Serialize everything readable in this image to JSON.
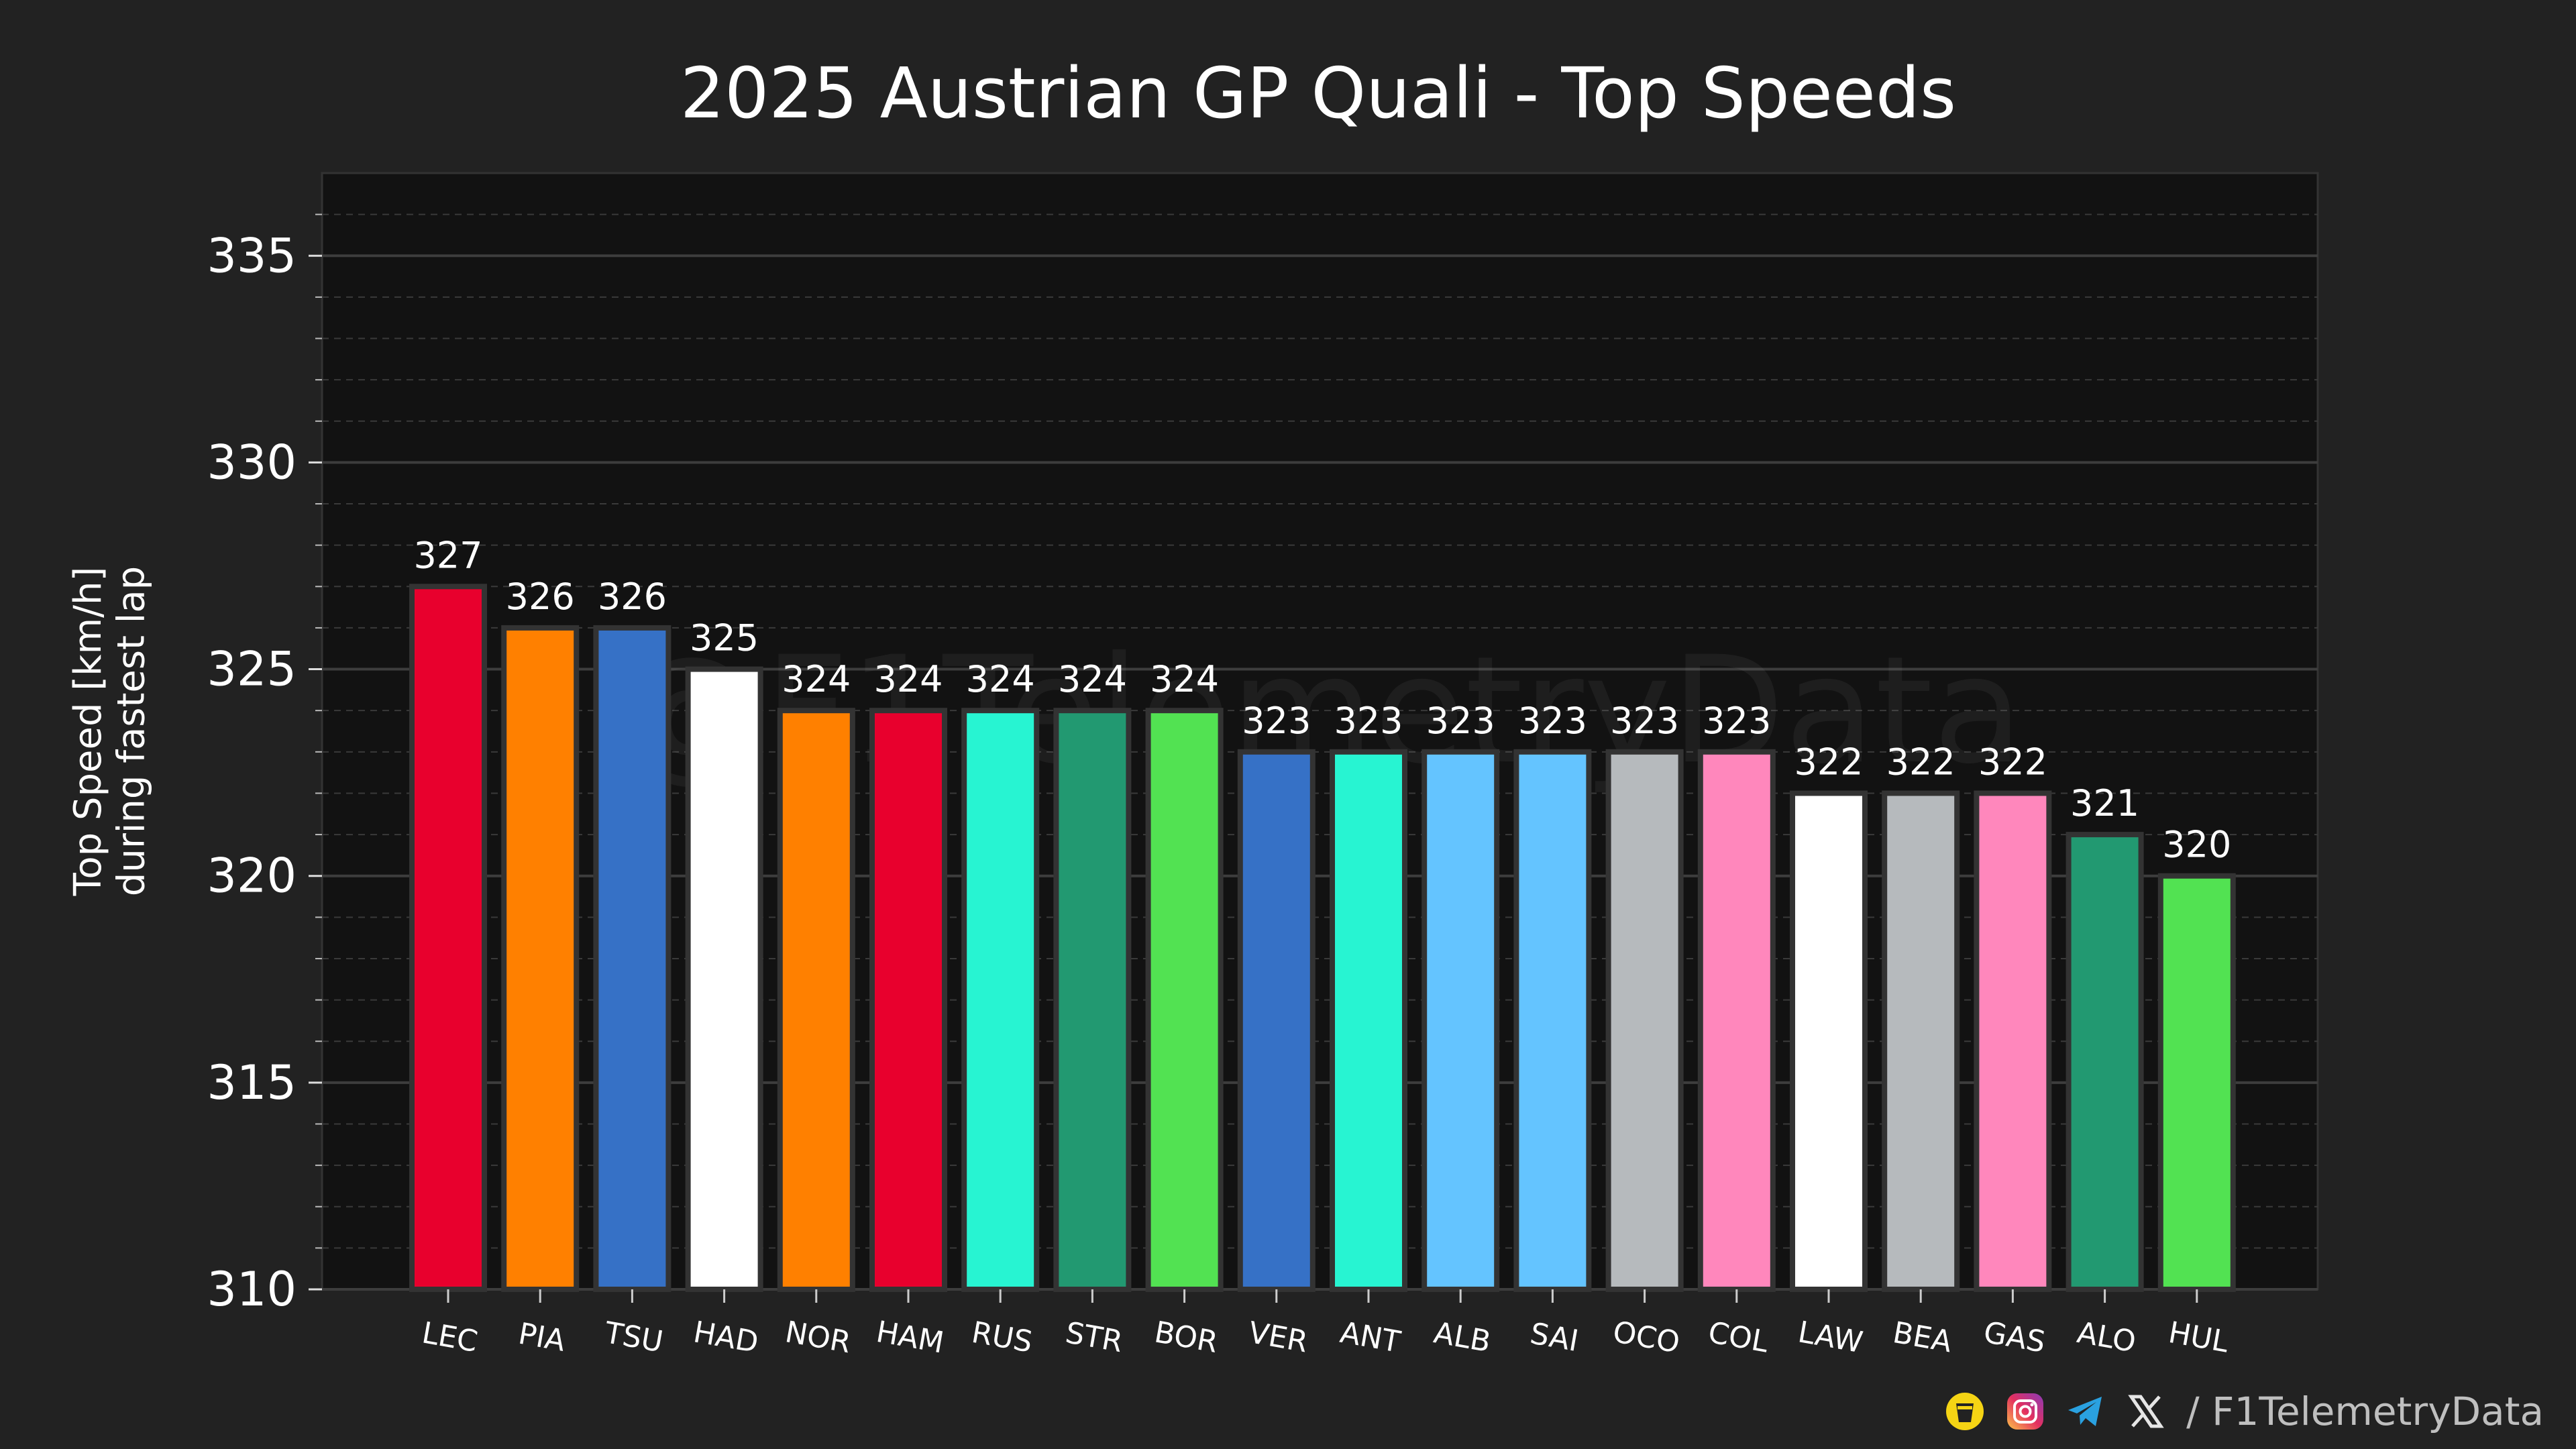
{
  "chart_data": {
    "type": "bar",
    "title": "2025 Austrian GP Quali - Top Speeds",
    "xlabel": "",
    "ylabel": "Top Speed [km/h]\nduring fastest lap",
    "ylim": [
      310,
      337
    ],
    "yticks": [
      310,
      315,
      320,
      325,
      330,
      335
    ],
    "categories": [
      "LEC",
      "PIA",
      "TSU",
      "HAD",
      "NOR",
      "HAM",
      "RUS",
      "STR",
      "BOR",
      "VER",
      "ANT",
      "ALB",
      "SAI",
      "OCO",
      "COL",
      "LAW",
      "BEA",
      "GAS",
      "ALO",
      "HUL"
    ],
    "values": [
      327,
      326,
      326,
      325,
      324,
      324,
      324,
      324,
      324,
      323,
      323,
      323,
      323,
      323,
      323,
      322,
      322,
      322,
      321,
      320
    ],
    "colors": [
      "#e8002d",
      "#ff8000",
      "#3671c6",
      "#ffffff",
      "#ff8000",
      "#e8002d",
      "#27f4d2",
      "#229971",
      "#52e252",
      "#3671c6",
      "#27f4d2",
      "#64c4ff",
      "#64c4ff",
      "#b6babd",
      "#ff87bc",
      "#ffffff",
      "#b6babd",
      "#ff87bc",
      "#229971",
      "#52e252"
    ],
    "grid": true,
    "watermark": "@F1TelemetryData"
  },
  "footer": {
    "icons": [
      "kofi-cup-icon",
      "instagram-icon",
      "telegram-icon",
      "x-logo-icon"
    ],
    "handle": "/ F1TelemetryData"
  }
}
